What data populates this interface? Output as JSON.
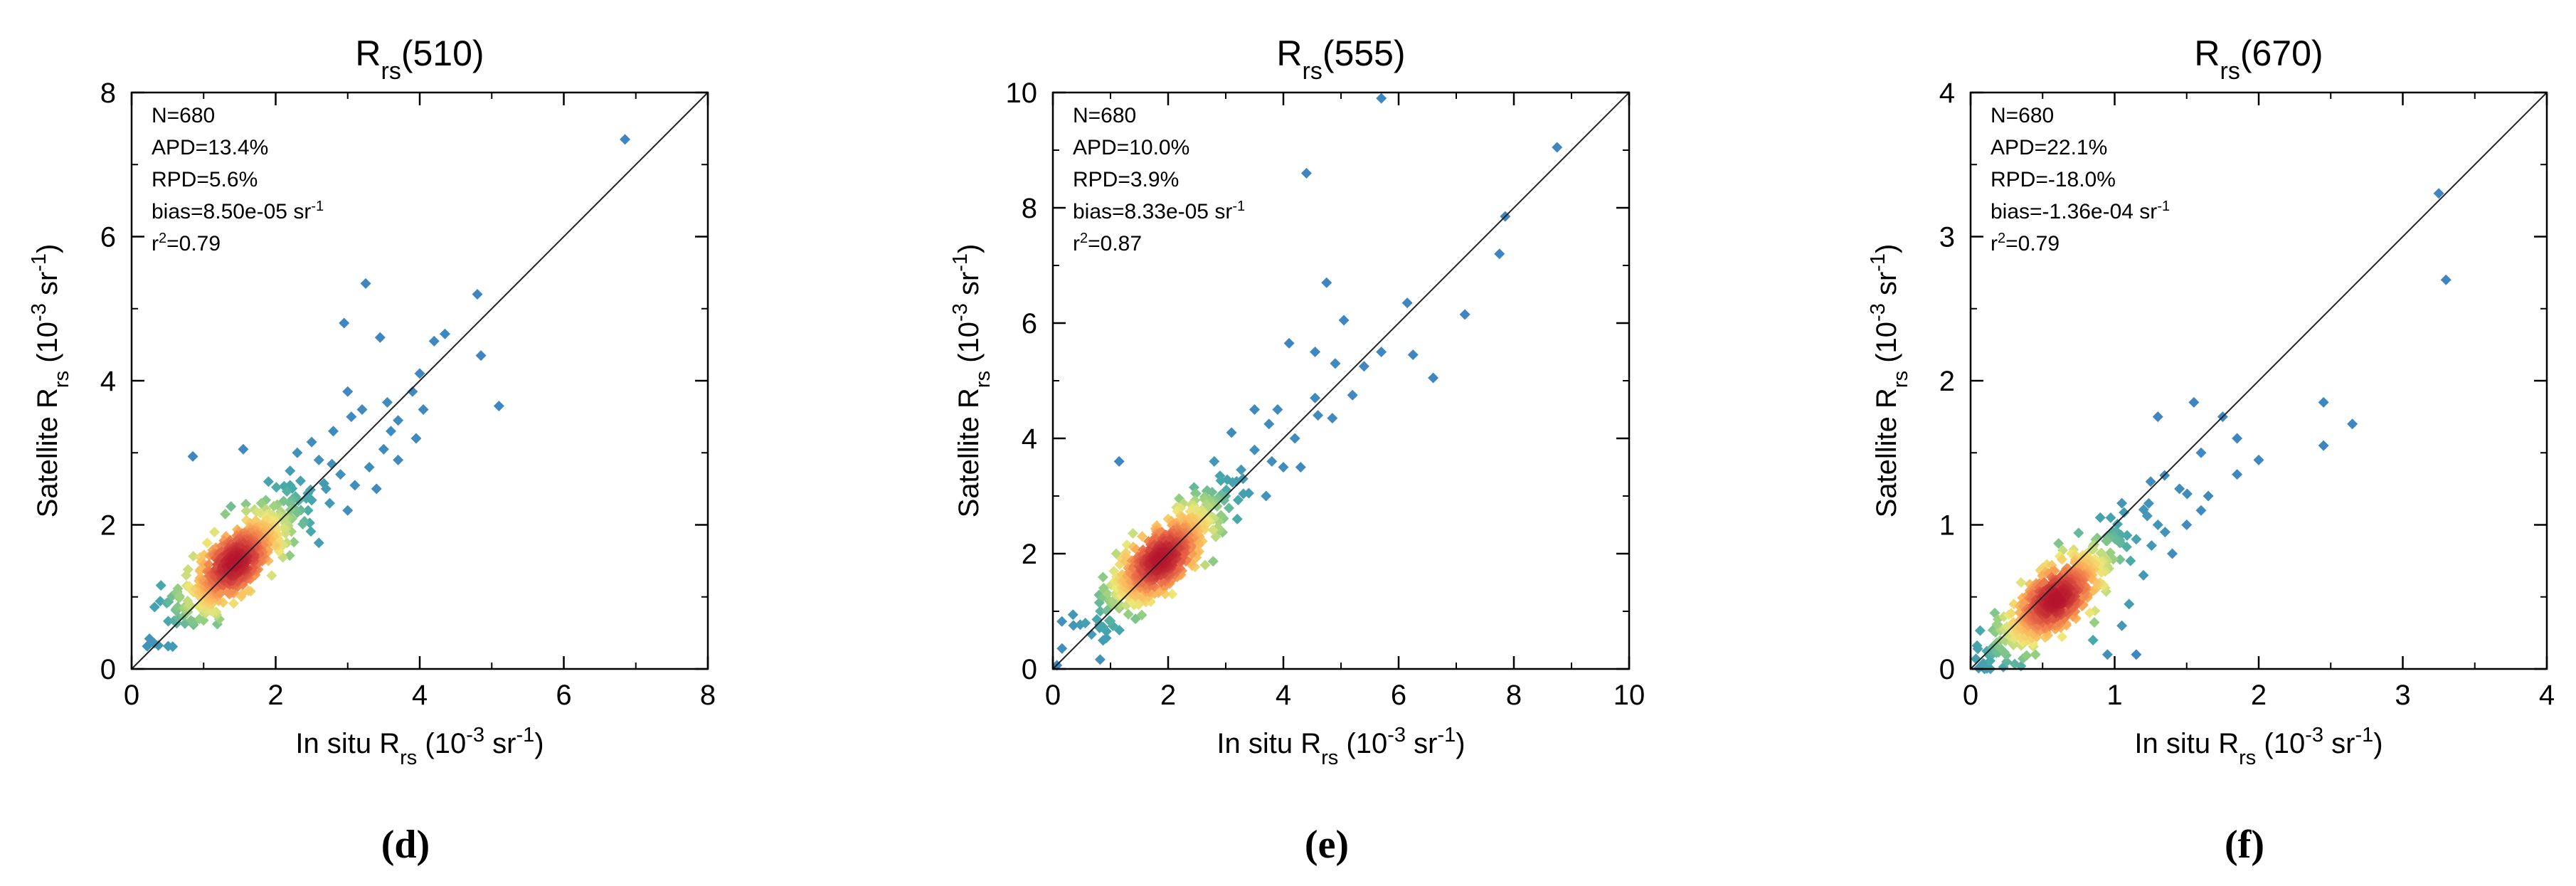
{
  "chart_data": [
    {
      "type": "scatter",
      "panel_label": "(d)",
      "title": {
        "base": "R",
        "sub": "rs",
        "suffix": "(510)"
      },
      "xlabel": {
        "pre": "In situ R",
        "sub": "rs",
        "mid": " (10",
        "sup": "-3",
        "mid2": " sr",
        "sup2": "-1",
        "post": ")"
      },
      "ylabel": {
        "pre": "Satellite R",
        "sub": "rs",
        "mid": " (10",
        "sup": "-3",
        "mid2": " sr",
        "sup2": "-1",
        "post": ")"
      },
      "xlim": [
        0,
        8
      ],
      "ylim": [
        0,
        8
      ],
      "xticks": [
        "0",
        "2",
        "4",
        "6",
        "8"
      ],
      "yticks": [
        "0",
        "2",
        "4",
        "6",
        "8"
      ],
      "tick_values": [
        0,
        2,
        4,
        6,
        8
      ],
      "one_to_one_line": true,
      "stats": {
        "n": "N=680",
        "apd": "APD=13.4%",
        "rpd": "RPD=5.6%",
        "bias_pre": "bias=8.50e-05 sr",
        "bias_sup": "-1",
        "r2_pre": "r",
        "r2_sup": "2",
        "r2_post": "=0.79"
      },
      "density_center": [
        1.45,
        1.5
      ],
      "points": [
        [
          6.85,
          7.35
        ],
        [
          3.25,
          5.35
        ],
        [
          4.8,
          5.2
        ],
        [
          4.85,
          4.35
        ],
        [
          5.1,
          3.65
        ],
        [
          2.95,
          4.8
        ],
        [
          4.2,
          4.55
        ],
        [
          4.35,
          4.65
        ],
        [
          4.0,
          4.1
        ],
        [
          3.45,
          4.6
        ],
        [
          3.9,
          3.85
        ],
        [
          4.05,
          3.6
        ],
        [
          3.0,
          3.85
        ],
        [
          3.2,
          3.6
        ],
        [
          3.6,
          3.3
        ],
        [
          3.5,
          3.05
        ],
        [
          3.3,
          2.8
        ],
        [
          3.1,
          2.55
        ],
        [
          2.8,
          3.3
        ],
        [
          2.6,
          2.9
        ],
        [
          3.95,
          3.2
        ],
        [
          0.85,
          2.95
        ],
        [
          1.55,
          3.05
        ],
        [
          2.7,
          2.5
        ],
        [
          2.45,
          2.2
        ],
        [
          2.2,
          2.55
        ],
        [
          2.0,
          2.05
        ],
        [
          1.8,
          2.3
        ],
        [
          1.3,
          2.15
        ],
        [
          1.05,
          1.75
        ],
        [
          0.8,
          1.15
        ],
        [
          0.75,
          0.85
        ],
        [
          1.1,
          1.0
        ],
        [
          2.1,
          1.55
        ],
        [
          2.6,
          1.75
        ],
        [
          3.0,
          2.2
        ],
        [
          3.4,
          2.5
        ],
        [
          3.7,
          2.9
        ],
        [
          2.3,
          3.0
        ],
        [
          1.9,
          2.6
        ],
        [
          2.4,
          2.05
        ],
        [
          2.9,
          2.7
        ],
        [
          1.6,
          1.3
        ],
        [
          1.35,
          1.05
        ],
        [
          1.9,
          1.5
        ],
        [
          1.2,
          1.35
        ],
        [
          1.45,
          1.6
        ],
        [
          1.6,
          1.85
        ],
        [
          1.7,
          1.7
        ],
        [
          1.25,
          1.25
        ],
        [
          1.5,
          1.4
        ],
        [
          1.0,
          1.2
        ],
        [
          2.5,
          3.15
        ],
        [
          3.05,
          3.5
        ],
        [
          2.2,
          2.75
        ],
        [
          0.95,
          1.55
        ],
        [
          1.15,
          1.9
        ],
        [
          2.75,
          2.3
        ],
        [
          3.55,
          3.7
        ],
        [
          3.7,
          3.45
        ]
      ]
    },
    {
      "type": "scatter",
      "panel_label": "(e)",
      "title": {
        "base": "R",
        "sub": "rs",
        "suffix": "(555)"
      },
      "xlabel": {
        "pre": "In situ R",
        "sub": "rs",
        "mid": " (10",
        "sup": "-3",
        "mid2": " sr",
        "sup2": "-1",
        "post": ")"
      },
      "ylabel": {
        "pre": "Satellite R",
        "sub": "rs",
        "mid": " (10",
        "sup": "-3",
        "mid2": " sr",
        "sup2": "-1",
        "post": ")"
      },
      "xlim": [
        0,
        10
      ],
      "ylim": [
        0,
        10
      ],
      "xticks": [
        "0",
        "2",
        "4",
        "6",
        "8",
        "10"
      ],
      "yticks": [
        "0",
        "2",
        "4",
        "6",
        "8",
        "10"
      ],
      "tick_values": [
        0,
        2,
        4,
        6,
        8,
        10
      ],
      "one_to_one_line": true,
      "stats": {
        "n": "N=680",
        "apd": "APD=10.0%",
        "rpd": "RPD=3.9%",
        "bias_pre": "bias=8.33e-05 sr",
        "bias_sup": "-1",
        "r2_pre": "r",
        "r2_sup": "2",
        "r2_post": "=0.87"
      },
      "density_center": [
        1.9,
        1.95
      ],
      "points": [
        [
          5.7,
          9.9
        ],
        [
          8.75,
          9.05
        ],
        [
          4.4,
          8.6
        ],
        [
          7.85,
          7.85
        ],
        [
          7.75,
          7.2
        ],
        [
          4.75,
          6.7
        ],
        [
          7.15,
          6.15
        ],
        [
          6.15,
          6.35
        ],
        [
          5.05,
          6.05
        ],
        [
          6.25,
          5.45
        ],
        [
          6.6,
          5.05
        ],
        [
          4.55,
          5.5
        ],
        [
          4.9,
          5.3
        ],
        [
          5.4,
          5.25
        ],
        [
          5.7,
          5.5
        ],
        [
          4.1,
          5.65
        ],
        [
          4.55,
          4.7
        ],
        [
          3.75,
          4.25
        ],
        [
          4.2,
          4.0
        ],
        [
          4.6,
          4.4
        ],
        [
          3.5,
          4.5
        ],
        [
          3.1,
          4.1
        ],
        [
          1.15,
          3.6
        ],
        [
          3.3,
          3.3
        ],
        [
          3.0,
          3.0
        ],
        [
          2.8,
          3.6
        ],
        [
          2.6,
          2.55
        ],
        [
          2.4,
          2.85
        ],
        [
          2.2,
          2.3
        ],
        [
          2.0,
          2.6
        ],
        [
          1.6,
          1.45
        ],
        [
          1.3,
          1.25
        ],
        [
          1.15,
          1.05
        ],
        [
          2.1,
          1.7
        ],
        [
          2.5,
          2.0
        ],
        [
          3.2,
          2.6
        ],
        [
          3.7,
          3.0
        ],
        [
          4.0,
          3.5
        ],
        [
          3.9,
          4.5
        ],
        [
          4.3,
          3.5
        ],
        [
          1.7,
          1.9
        ],
        [
          1.9,
          2.1
        ],
        [
          2.0,
          1.8
        ],
        [
          1.8,
          1.6
        ],
        [
          2.3,
          2.5
        ],
        [
          2.7,
          2.8
        ],
        [
          3.5,
          3.8
        ],
        [
          1.55,
          2.3
        ],
        [
          2.1,
          2.35
        ],
        [
          3.4,
          3.05
        ],
        [
          2.9,
          3.35
        ],
        [
          5.2,
          4.75
        ],
        [
          4.85,
          4.35
        ],
        [
          1.35,
          1.65
        ],
        [
          2.45,
          3.15
        ],
        [
          3.8,
          3.6
        ]
      ]
    },
    {
      "type": "scatter",
      "panel_label": "(f)",
      "title": {
        "base": "R",
        "sub": "rs",
        "suffix": "(670)"
      },
      "xlabel": {
        "pre": "In situ R",
        "sub": "rs",
        "mid": " (10",
        "sup": "-3",
        "mid2": " sr",
        "sup2": "-1",
        "post": ")"
      },
      "ylabel": {
        "pre": "Satellite R",
        "sub": "rs",
        "mid": " (10",
        "sup": "-3",
        "mid2": " sr",
        "sup2": "-1",
        "post": ")"
      },
      "xlim": [
        0,
        4
      ],
      "ylim": [
        0,
        4
      ],
      "xticks": [
        "0",
        "1",
        "2",
        "3",
        "4"
      ],
      "yticks": [
        "0",
        "1",
        "2",
        "3",
        "4"
      ],
      "tick_values": [
        0,
        1,
        2,
        3,
        4
      ],
      "one_to_one_line": true,
      "stats": {
        "n": "N=680",
        "apd": "APD=22.1%",
        "rpd": "RPD=-18.0%",
        "bias_pre": "bias=-1.36e-04 sr",
        "bias_sup": "-1",
        "r2_pre": "r",
        "r2_sup": "2",
        "r2_post": "=0.79"
      },
      "density_center": [
        0.6,
        0.5
      ],
      "points": [
        [
          3.25,
          3.3
        ],
        [
          3.3,
          2.7
        ],
        [
          2.45,
          1.85
        ],
        [
          2.65,
          1.7
        ],
        [
          2.45,
          1.55
        ],
        [
          1.55,
          1.85
        ],
        [
          1.6,
          1.5
        ],
        [
          1.75,
          1.75
        ],
        [
          1.85,
          1.35
        ],
        [
          2.0,
          1.45
        ],
        [
          1.85,
          1.6
        ],
        [
          1.3,
          1.75
        ],
        [
          1.45,
          1.25
        ],
        [
          1.6,
          1.1
        ],
        [
          1.3,
          1.0
        ],
        [
          1.2,
          0.65
        ],
        [
          1.4,
          0.8
        ],
        [
          1.1,
          0.45
        ],
        [
          1.05,
          0.3
        ],
        [
          1.15,
          0.1
        ],
        [
          0.95,
          0.1
        ],
        [
          0.85,
          0.2
        ],
        [
          0.3,
          0.25
        ],
        [
          0.25,
          0.05
        ],
        [
          0.35,
          0.02
        ],
        [
          0.45,
          0.1
        ],
        [
          0.3,
          0.45
        ],
        [
          0.5,
          0.65
        ],
        [
          0.7,
          0.8
        ],
        [
          0.9,
          1.05
        ],
        [
          1.0,
          0.95
        ],
        [
          0.8,
          0.55
        ],
        [
          0.65,
          0.35
        ],
        [
          0.55,
          0.55
        ],
        [
          0.6,
          0.45
        ],
        [
          0.7,
          0.6
        ],
        [
          0.5,
          0.4
        ],
        [
          0.4,
          0.3
        ],
        [
          0.75,
          0.7
        ],
        [
          0.85,
          0.85
        ],
        [
          1.05,
          1.15
        ],
        [
          1.25,
          1.3
        ],
        [
          1.5,
          1.0
        ],
        [
          0.95,
          0.75
        ],
        [
          1.15,
          0.9
        ],
        [
          1.65,
          1.2
        ],
        [
          1.35,
          0.95
        ],
        [
          0.35,
          0.6
        ]
      ]
    }
  ]
}
